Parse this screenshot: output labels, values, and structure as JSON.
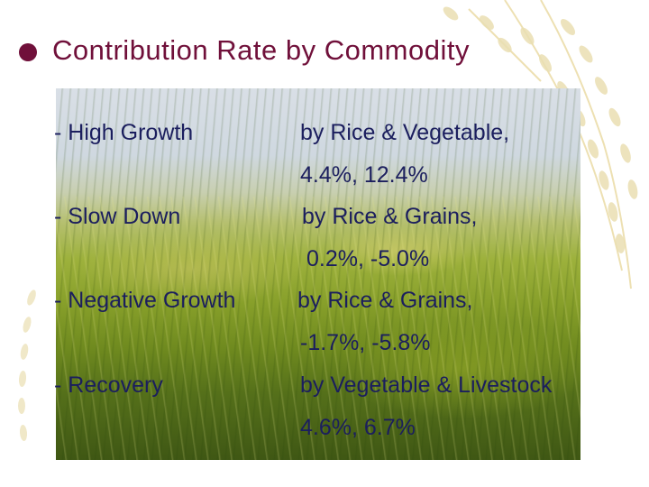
{
  "slide": {
    "title": "Contribution Rate by Commodity",
    "title_color": "#70103a",
    "text_color": "#1b1e5e",
    "bullet_icon": "filled-circle-icon",
    "rows": [
      {
        "label": "- High Growth",
        "line1": "by Rice & Vegetable,",
        "line2": "4.4%, 12.4%"
      },
      {
        "label": "- Slow Down",
        "line1": "by Rice & Grains,",
        "line2": "0.2%, -5.0%"
      },
      {
        "label": "- Negative Growth",
        "line1": "by Rice & Grains,",
        "line2": "-1.7%, -5.8%"
      },
      {
        "label": "- Recovery",
        "line1": "by Vegetable & Livestock",
        "line2": "4.6%, 6.7%"
      }
    ]
  }
}
